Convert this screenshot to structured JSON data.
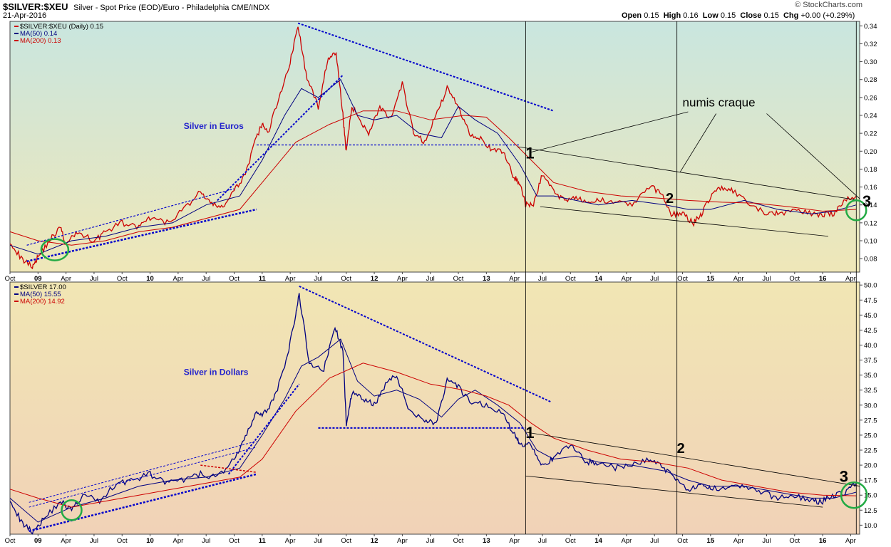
{
  "header": {
    "symbol": "$SILVER:$XEU",
    "description": "Silver - Spot Price (EOD)/Euro - Philadelphia",
    "exchange": "CME/INDX",
    "date": "21-Apr-2016",
    "brand": "© StockCharts.com",
    "ohlc": {
      "open_label": "Open",
      "open": "0.15",
      "high_label": "High",
      "high": "0.16",
      "low_label": "Low",
      "low": "0.15",
      "close_label": "Close",
      "close": "0.15",
      "chg_label": "Chg",
      "chg": "+0.00 (+0.29%)"
    }
  },
  "colors": {
    "price_euro": "#cc0000",
    "price_usd": "#000080",
    "ma50": "#000080",
    "ma200": "#cc0000",
    "trendline": "#0000cc",
    "circle": "#22aa44",
    "euro_bg_top": "#c9e6df",
    "euro_bg_bottom": "#efe7b8",
    "usd_bg_top": "#f1e6b4",
    "usd_bg_bottom": "#f1d2b7"
  },
  "annotations": {
    "euro_label": "Silver in Euros",
    "usd_label": "Silver in Dollars",
    "numis": "numis craque",
    "mark1": "1",
    "mark2": "2",
    "mark3": "3"
  },
  "chart_data": [
    {
      "type": "line",
      "legend": [
        {
          "text": "$SILVER:$XEU (Daily) 0.15",
          "color": "#000000"
        },
        {
          "text": "MA(50) 0.14",
          "color": "#000080"
        },
        {
          "text": "MA(200) 0.13",
          "color": "#cc0000"
        }
      ],
      "x_ticks": [
        "Oct",
        "09",
        "Apr",
        "Jul",
        "Oct",
        "10",
        "Apr",
        "Jul",
        "Oct",
        "11",
        "Apr",
        "Jul",
        "Oct",
        "12",
        "Apr",
        "Jul",
        "Oct",
        "13",
        "Apr",
        "Jul",
        "Oct",
        "14",
        "Apr",
        "Jul",
        "Oct",
        "15",
        "Apr",
        "Jul",
        "Oct",
        "16",
        "Apr"
      ],
      "y_ticks": [
        0.08,
        0.1,
        0.12,
        0.14,
        0.16,
        0.18,
        0.2,
        0.22,
        0.24,
        0.26,
        0.28,
        0.3,
        0.32,
        0.34
      ],
      "ylim": [
        0.065,
        0.345
      ],
      "series": [
        {
          "name": "$SILVER:$XEU",
          "x": [
            2008.75,
            2008.85,
            2008.95,
            2009.0,
            2009.1,
            2009.2,
            2009.25,
            2009.35,
            2009.5,
            2009.6,
            2009.75,
            2009.9,
            2010.0,
            2010.15,
            2010.3,
            2010.45,
            2010.55,
            2010.65,
            2010.75,
            2010.85,
            2010.95,
            2011.0,
            2011.05,
            2011.15,
            2011.25,
            2011.32,
            2011.4,
            2011.5,
            2011.58,
            2011.66,
            2011.72,
            2011.75,
            2011.8,
            2011.85,
            2011.95,
            2012.05,
            2012.15,
            2012.25,
            2012.35,
            2012.45,
            2012.55,
            2012.65,
            2012.75,
            2012.85,
            2012.95,
            2013.05,
            2013.15,
            2013.25,
            2013.3,
            2013.35,
            2013.42,
            2013.5,
            2013.6,
            2013.7,
            2013.8,
            2013.9,
            2014.0,
            2014.15,
            2014.3,
            2014.45,
            2014.55,
            2014.65,
            2014.75,
            2014.85,
            2014.92,
            2015.0,
            2015.1,
            2015.2,
            2015.35,
            2015.5,
            2015.6,
            2015.75,
            2015.9,
            2016.0,
            2016.1,
            2016.2,
            2016.3
          ],
          "y": [
            0.1,
            0.08,
            0.072,
            0.082,
            0.1,
            0.115,
            0.095,
            0.11,
            0.1,
            0.11,
            0.12,
            0.115,
            0.125,
            0.12,
            0.135,
            0.155,
            0.14,
            0.138,
            0.155,
            0.175,
            0.215,
            0.23,
            0.22,
            0.26,
            0.3,
            0.34,
            0.28,
            0.25,
            0.3,
            0.31,
            0.24,
            0.2,
            0.25,
            0.24,
            0.22,
            0.25,
            0.235,
            0.275,
            0.22,
            0.21,
            0.24,
            0.27,
            0.25,
            0.22,
            0.215,
            0.2,
            0.2,
            0.17,
            0.165,
            0.14,
            0.14,
            0.175,
            0.155,
            0.145,
            0.15,
            0.14,
            0.145,
            0.145,
            0.14,
            0.16,
            0.155,
            0.13,
            0.13,
            0.12,
            0.13,
            0.15,
            0.16,
            0.155,
            0.14,
            0.13,
            0.13,
            0.135,
            0.13,
            0.13,
            0.13,
            0.145,
            0.15
          ]
        },
        {
          "name": "MA(50)",
          "x": [
            2008.75,
            2009.0,
            2009.3,
            2009.6,
            2009.9,
            2010.2,
            2010.5,
            2010.8,
            2011.0,
            2011.2,
            2011.35,
            2011.5,
            2011.7,
            2011.85,
            2012.0,
            2012.2,
            2012.4,
            2012.6,
            2012.75,
            2012.9,
            2013.1,
            2013.3,
            2013.45,
            2013.6,
            2013.8,
            2014.0,
            2014.3,
            2014.6,
            2014.8,
            2015.0,
            2015.3,
            2015.6,
            2015.9,
            2016.1,
            2016.3
          ],
          "y": [
            0.095,
            0.085,
            0.1,
            0.105,
            0.115,
            0.12,
            0.14,
            0.15,
            0.19,
            0.24,
            0.27,
            0.26,
            0.28,
            0.24,
            0.235,
            0.24,
            0.22,
            0.215,
            0.25,
            0.235,
            0.22,
            0.185,
            0.15,
            0.15,
            0.145,
            0.14,
            0.145,
            0.14,
            0.135,
            0.135,
            0.145,
            0.135,
            0.13,
            0.133,
            0.14
          ]
        },
        {
          "name": "MA(200)",
          "x": [
            2008.75,
            2009.0,
            2009.3,
            2009.6,
            2009.9,
            2010.2,
            2010.5,
            2010.8,
            2011.0,
            2011.3,
            2011.6,
            2011.9,
            2012.2,
            2012.5,
            2012.8,
            2013.0,
            2013.2,
            2013.4,
            2013.6,
            2013.9,
            2014.2,
            2014.5,
            2014.8,
            2015.1,
            2015.4,
            2015.7,
            2016.0,
            2016.3
          ],
          "y": [
            0.11,
            0.1,
            0.095,
            0.1,
            0.11,
            0.115,
            0.125,
            0.135,
            0.165,
            0.21,
            0.23,
            0.245,
            0.245,
            0.235,
            0.24,
            0.238,
            0.215,
            0.19,
            0.165,
            0.155,
            0.15,
            0.148,
            0.145,
            0.143,
            0.142,
            0.138,
            0.133,
            0.135
          ]
        }
      ]
    },
    {
      "type": "line",
      "legend": [
        {
          "text": "$SILVER 17.00",
          "color": "#000000"
        },
        {
          "text": "MA(50) 15.55",
          "color": "#000080"
        },
        {
          "text": "MA(200) 14.92",
          "color": "#cc0000"
        }
      ],
      "x_ticks": [
        "Oct",
        "09",
        "Apr",
        "Jul",
        "Oct",
        "10",
        "Apr",
        "Jul",
        "Oct",
        "11",
        "Apr",
        "Jul",
        "Oct",
        "12",
        "Apr",
        "Jul",
        "Oct",
        "13",
        "Apr",
        "Jul",
        "Oct",
        "14",
        "Apr",
        "Jul",
        "Oct",
        "15",
        "Apr",
        "Jul",
        "Oct",
        "16",
        "Apr"
      ],
      "y_ticks": [
        10.0,
        12.5,
        15.0,
        17.5,
        20.0,
        22.5,
        25.0,
        27.5,
        30.0,
        32.5,
        35.0,
        37.5,
        40.0,
        42.5,
        45.0,
        47.5,
        50.0
      ],
      "ylim": [
        8.5,
        50.5
      ],
      "series": [
        {
          "name": "$SILVER",
          "x": [
            2008.75,
            2008.85,
            2008.95,
            2009.05,
            2009.2,
            2009.3,
            2009.4,
            2009.55,
            2009.7,
            2009.85,
            2010.0,
            2010.15,
            2010.3,
            2010.45,
            2010.6,
            2010.75,
            2010.85,
            2010.95,
            2011.0,
            2011.1,
            2011.2,
            2011.3,
            2011.33,
            2011.42,
            2011.55,
            2011.65,
            2011.72,
            2011.75,
            2011.8,
            2011.9,
            2012.0,
            2012.1,
            2012.2,
            2012.3,
            2012.45,
            2012.55,
            2012.65,
            2012.75,
            2012.85,
            2013.0,
            2013.15,
            2013.25,
            2013.3,
            2013.4,
            2013.5,
            2013.6,
            2013.75,
            2013.9,
            2014.0,
            2014.15,
            2014.3,
            2014.45,
            2014.55,
            2014.65,
            2014.8,
            2014.92,
            2015.0,
            2015.15,
            2015.3,
            2015.45,
            2015.6,
            2015.75,
            2015.9,
            2016.0,
            2016.1,
            2016.2,
            2016.3
          ],
          "y": [
            14.5,
            10.5,
            9.0,
            11.0,
            14.0,
            12.5,
            15.0,
            14.0,
            17.0,
            17.5,
            18.5,
            17.0,
            17.5,
            18.5,
            18.0,
            21.0,
            24.5,
            29.0,
            28.0,
            31.0,
            36.0,
            45.0,
            48.5,
            37.0,
            36.0,
            43.0,
            39.0,
            27.0,
            32.0,
            31.0,
            30.0,
            33.5,
            35.0,
            29.5,
            27.5,
            27.0,
            34.0,
            33.0,
            30.5,
            30.0,
            28.5,
            25.0,
            23.5,
            23.5,
            20.0,
            21.0,
            23.5,
            20.5,
            20.5,
            19.5,
            20.0,
            21.0,
            20.0,
            18.5,
            16.0,
            16.5,
            16.0,
            16.5,
            16.5,
            15.5,
            14.5,
            15.0,
            14.0,
            14.0,
            15.0,
            15.5,
            17.0
          ]
        },
        {
          "name": "MA(50)",
          "x": [
            2008.75,
            2009.0,
            2009.3,
            2009.6,
            2009.9,
            2010.2,
            2010.5,
            2010.8,
            2011.0,
            2011.2,
            2011.35,
            2011.5,
            2011.7,
            2011.85,
            2012.0,
            2012.2,
            2012.4,
            2012.6,
            2012.75,
            2012.9,
            2013.1,
            2013.3,
            2013.45,
            2013.6,
            2013.8,
            2014.0,
            2014.3,
            2014.6,
            2014.8,
            2015.0,
            2015.3,
            2015.6,
            2015.9,
            2016.1,
            2016.3
          ],
          "y": [
            14.5,
            10.5,
            13.0,
            14.5,
            16.5,
            17.5,
            18.0,
            19.5,
            25.0,
            31.0,
            36.5,
            38.0,
            41.0,
            34.0,
            31.5,
            32.5,
            31.0,
            28.0,
            31.0,
            32.5,
            30.0,
            27.0,
            22.5,
            21.0,
            21.5,
            20.5,
            20.0,
            19.0,
            17.5,
            16.5,
            16.5,
            15.5,
            14.5,
            14.5,
            15.5
          ]
        },
        {
          "name": "MA(200)",
          "x": [
            2008.75,
            2009.0,
            2009.3,
            2009.6,
            2009.9,
            2010.2,
            2010.5,
            2010.8,
            2011.0,
            2011.3,
            2011.6,
            2011.9,
            2012.2,
            2012.5,
            2012.8,
            2013.0,
            2013.2,
            2013.4,
            2013.6,
            2013.9,
            2014.2,
            2014.5,
            2014.8,
            2015.1,
            2015.4,
            2015.7,
            2016.0,
            2016.3
          ],
          "y": [
            16.0,
            14.5,
            13.0,
            14.0,
            15.0,
            16.0,
            17.0,
            18.0,
            21.0,
            29.0,
            34.5,
            37.0,
            35.5,
            33.5,
            32.5,
            31.5,
            30.0,
            27.0,
            24.5,
            22.5,
            21.0,
            20.5,
            19.5,
            17.5,
            16.5,
            15.5,
            15.0,
            14.9
          ]
        }
      ]
    }
  ]
}
